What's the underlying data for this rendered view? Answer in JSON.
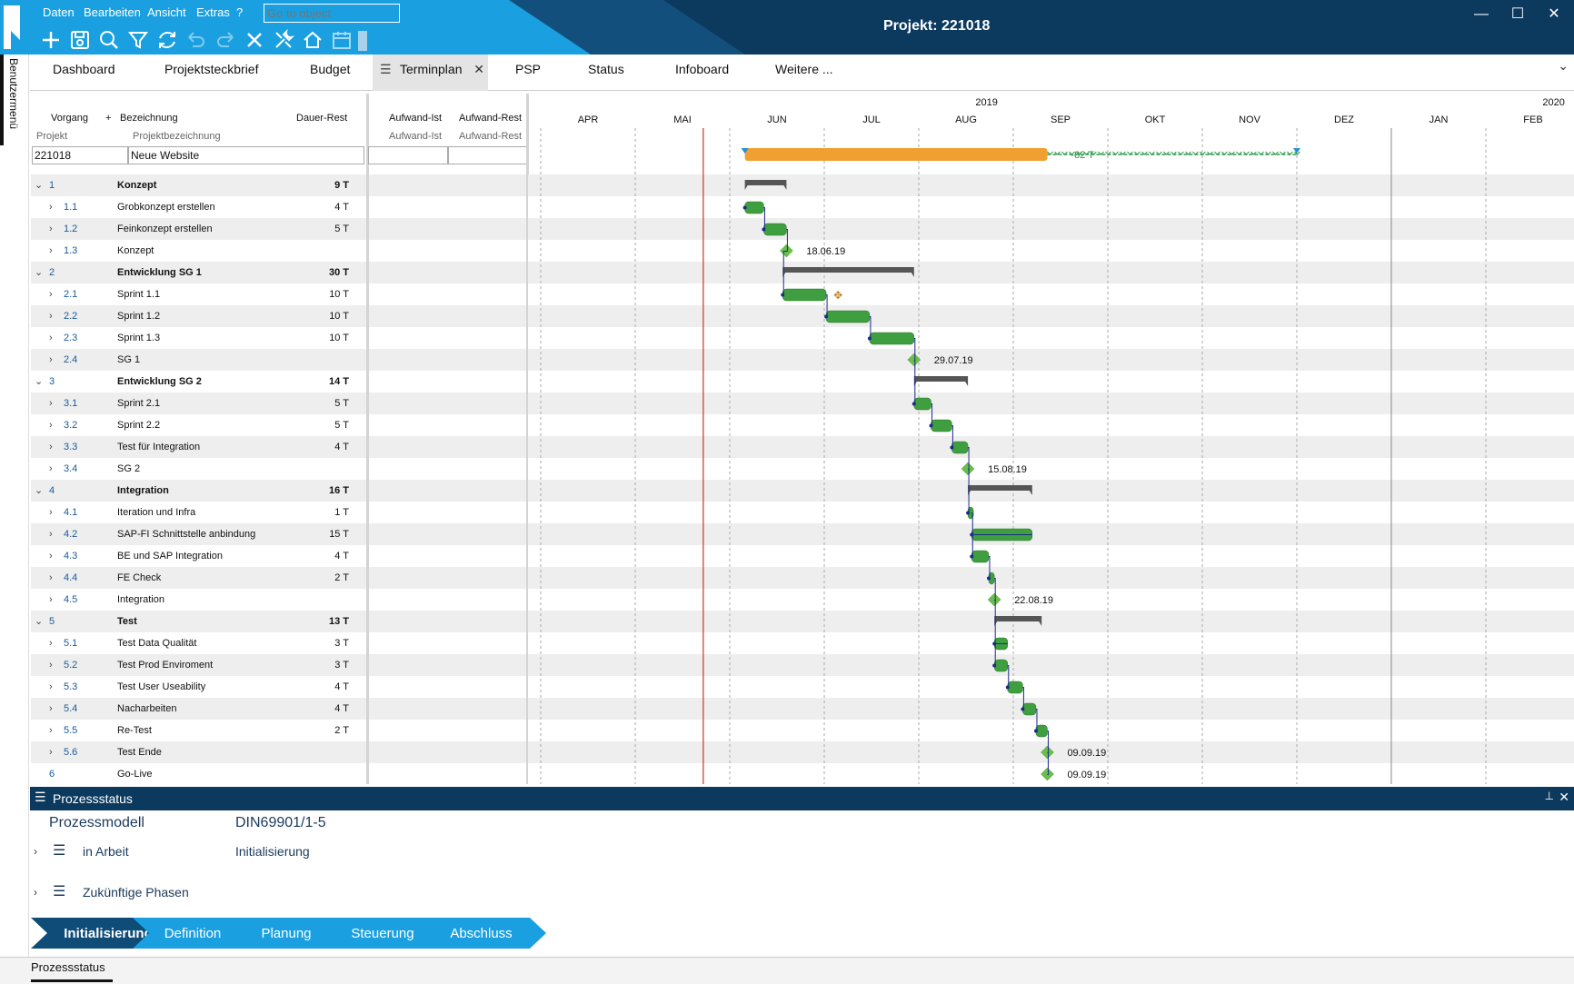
{
  "window": {
    "title": "Projekt: 221018",
    "btn_min": "—",
    "btn_max": "☐",
    "btn_close": "✕"
  },
  "menu": [
    "Daten",
    "Bearbeiten",
    "Ansicht",
    "Extras",
    "?"
  ],
  "goto": {
    "placeholder": "Go to object"
  },
  "toolbar_icons": [
    "add-icon",
    "save-icon",
    "search-icon",
    "filter-icon",
    "refresh-icon",
    "undo-icon",
    "redo-icon",
    "delete-icon",
    "tools-icon",
    "home-icon",
    "calendar-icon"
  ],
  "sidebar": {
    "label": "Benutzermenü"
  },
  "tabs": [
    "Dashboard",
    "Projektsteckbrief",
    "Budget",
    "Terminplan",
    "PSP",
    "Status",
    "Infoboard",
    "Weitere ..."
  ],
  "active_tab": "Terminplan",
  "grid": {
    "headers": {
      "vorgang": "Vorgang",
      "plus": "+",
      "bezeichnung": "Bezeichnung",
      "dauer": "Dauer-Rest",
      "aufwand_ist": "Aufwand-Ist",
      "aufwand_rest": "Aufwand-Rest"
    },
    "subheaders": {
      "projekt": "Projekt",
      "projektbezeichnung": "Projektbezeichnung",
      "aufwand_ist": "Aufwand-Ist",
      "aufwand_rest": "Aufwand-Rest"
    },
    "project_id": "221018",
    "project_name": "Neue Website",
    "rows": [
      {
        "id": "1",
        "name": "Konzept",
        "dur": "9 T",
        "level": 0
      },
      {
        "id": "1.1",
        "name": "Grobkonzept erstellen",
        "dur": "4 T",
        "level": 1
      },
      {
        "id": "1.2",
        "name": "Feinkonzept erstellen",
        "dur": "5 T",
        "level": 1
      },
      {
        "id": "1.3",
        "name": "Konzept",
        "dur": "",
        "level": 1
      },
      {
        "id": "2",
        "name": "Entwicklung SG 1",
        "dur": "30 T",
        "level": 0
      },
      {
        "id": "2.1",
        "name": "Sprint 1.1",
        "dur": "10 T",
        "level": 1
      },
      {
        "id": "2.2",
        "name": "Sprint 1.2",
        "dur": "10 T",
        "level": 1
      },
      {
        "id": "2.3",
        "name": "Sprint 1.3",
        "dur": "10 T",
        "level": 1
      },
      {
        "id": "2.4",
        "name": "SG 1",
        "dur": "",
        "level": 1
      },
      {
        "id": "3",
        "name": "Entwicklung SG 2",
        "dur": "14 T",
        "level": 0
      },
      {
        "id": "3.1",
        "name": "Sprint 2.1",
        "dur": "5 T",
        "level": 1
      },
      {
        "id": "3.2",
        "name": "Sprint 2.2",
        "dur": "5 T",
        "level": 1
      },
      {
        "id": "3.3",
        "name": "Test für  Integration",
        "dur": "4 T",
        "level": 1
      },
      {
        "id": "3.4",
        "name": "SG 2",
        "dur": "",
        "level": 1
      },
      {
        "id": "4",
        "name": "Integration",
        "dur": "16 T",
        "level": 0
      },
      {
        "id": "4.1",
        "name": "Iteration und Infra",
        "dur": "1 T",
        "level": 1
      },
      {
        "id": "4.2",
        "name": "SAP-FI Schnittstelle anbindung",
        "dur": "15 T",
        "level": 1
      },
      {
        "id": "4.3",
        "name": "BE und SAP Integration",
        "dur": "4 T",
        "level": 1
      },
      {
        "id": "4.4",
        "name": "FE Check",
        "dur": "2 T",
        "level": 1
      },
      {
        "id": "4.5",
        "name": "Integration",
        "dur": "",
        "level": 1
      },
      {
        "id": "5",
        "name": "Test",
        "dur": "13 T",
        "level": 0
      },
      {
        "id": "5.1",
        "name": "Test Data Qualität",
        "dur": "3 T",
        "level": 1
      },
      {
        "id": "5.2",
        "name": "Test Prod Enviroment",
        "dur": "3 T",
        "level": 1
      },
      {
        "id": "5.3",
        "name": "Test User Useability",
        "dur": "4 T",
        "level": 1
      },
      {
        "id": "5.4",
        "name": "Nacharbeiten",
        "dur": "4 T",
        "level": 1
      },
      {
        "id": "5.5",
        "name": "Re-Test",
        "dur": "2 T",
        "level": 1
      },
      {
        "id": "5.6",
        "name": "Test Ende",
        "dur": "",
        "level": 1
      },
      {
        "id": "6",
        "name": "Go-Live",
        "dur": "",
        "level": 0,
        "noexpand": true
      }
    ]
  },
  "timeline": {
    "years": [
      "2019",
      "2020"
    ],
    "months": [
      "APR",
      "MAI",
      "JUN",
      "JUL",
      "AUG",
      "SEP",
      "OKT",
      "NOV",
      "DEZ",
      "JAN",
      "FEB"
    ],
    "project_bar_label": "-82 T"
  },
  "gantt_items": [
    {
      "row": 0,
      "type": "summary",
      "start": 2.16,
      "end": 2.6
    },
    {
      "row": 1,
      "type": "task",
      "start": 2.16,
      "end": 2.36
    },
    {
      "row": 2,
      "type": "task",
      "start": 2.36,
      "end": 2.6
    },
    {
      "row": 3,
      "type": "milestone",
      "at": 2.6,
      "label": "18.06.19"
    },
    {
      "row": 4,
      "type": "summary",
      "start": 2.56,
      "end": 3.95
    },
    {
      "row": 5,
      "type": "task",
      "start": 2.56,
      "end": 3.02
    },
    {
      "row": 6,
      "type": "task",
      "start": 3.02,
      "end": 3.48
    },
    {
      "row": 7,
      "type": "task",
      "start": 3.48,
      "end": 3.95
    },
    {
      "row": 8,
      "type": "milestone",
      "at": 3.95,
      "label": "29.07.19"
    },
    {
      "row": 9,
      "type": "summary",
      "start": 3.95,
      "end": 4.52
    },
    {
      "row": 10,
      "type": "task",
      "start": 3.95,
      "end": 4.13
    },
    {
      "row": 11,
      "type": "task",
      "start": 4.13,
      "end": 4.35
    },
    {
      "row": 12,
      "type": "task",
      "start": 4.35,
      "end": 4.52
    },
    {
      "row": 13,
      "type": "milestone",
      "at": 4.52,
      "label": "15.08.19"
    },
    {
      "row": 14,
      "type": "summary",
      "start": 4.52,
      "end": 5.2
    },
    {
      "row": 15,
      "type": "task",
      "start": 4.52,
      "end": 4.56
    },
    {
      "row": 16,
      "type": "task",
      "start": 4.56,
      "end": 5.2
    },
    {
      "row": 17,
      "type": "task",
      "start": 4.56,
      "end": 4.74
    },
    {
      "row": 18,
      "type": "task",
      "start": 4.74,
      "end": 4.8
    },
    {
      "row": 19,
      "type": "milestone",
      "at": 4.8,
      "label": "22.08.19"
    },
    {
      "row": 20,
      "type": "summary",
      "start": 4.8,
      "end": 5.3
    },
    {
      "row": 21,
      "type": "task",
      "start": 4.8,
      "end": 4.94
    },
    {
      "row": 22,
      "type": "task",
      "start": 4.8,
      "end": 4.94
    },
    {
      "row": 23,
      "type": "task",
      "start": 4.94,
      "end": 5.1
    },
    {
      "row": 24,
      "type": "task",
      "start": 5.1,
      "end": 5.24
    },
    {
      "row": 25,
      "type": "task",
      "start": 5.24,
      "end": 5.36
    },
    {
      "row": 26,
      "type": "milestone",
      "at": 5.36,
      "label": "09.09.19"
    },
    {
      "row": 27,
      "type": "milestone",
      "at": 5.36,
      "label": "09.09.19"
    }
  ],
  "project_bar": {
    "start": 2.16,
    "end": 5.36,
    "slack_end": 8.0
  },
  "today_marker": 1.72,
  "prozessstatus": {
    "title": "Prozessstatus",
    "pin": "📌",
    "close": "✕",
    "modell_label": "Prozessmodell",
    "modell_value": "DIN69901/1-5",
    "in_arbeit_label": "in Arbeit",
    "in_arbeit_value": "Initialisierung",
    "future_label": "Zukünftige Phasen",
    "phases": [
      "Initialisierung",
      "Definition",
      "Planung",
      "Steuerung",
      "Abschluss"
    ]
  },
  "statusbar": {
    "label": "Prozessstatus"
  },
  "colors": {
    "titlebar": "#0c3a5e",
    "accent": "#1aa0e0",
    "task": "#3f9e3f",
    "summary": "#555555",
    "milestone": "#6abf4b",
    "project_bar": "#f0a030",
    "today": "#c0392b"
  }
}
